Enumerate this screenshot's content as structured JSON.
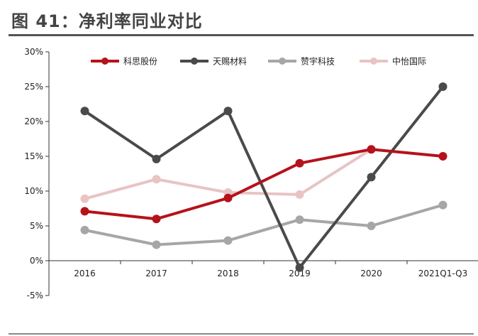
{
  "figure": {
    "title": "图 41：净利率同业对比"
  },
  "chart_data": {
    "type": "line",
    "title": "",
    "xlabel": "",
    "ylabel": "",
    "categories": [
      "2016",
      "2017",
      "2018",
      "2019",
      "2020",
      "2021Q1-Q3"
    ],
    "y_ticks": [
      "30%",
      "25%",
      "20%",
      "15%",
      "10%",
      "5%",
      "0%",
      "-5%"
    ],
    "y_tick_values": [
      30,
      25,
      20,
      15,
      10,
      5,
      0,
      -5
    ],
    "ylim": [
      -5,
      30
    ],
    "grid": false,
    "legend_position": "top",
    "series": [
      {
        "name": "科思股份",
        "color": "#b5121b",
        "values": [
          7.1,
          6.0,
          9.0,
          14.0,
          16.0,
          15.0
        ]
      },
      {
        "name": "天赐材料",
        "color": "#4a4a4a",
        "values": [
          21.5,
          14.6,
          21.5,
          -1.0,
          12.0,
          25.0
        ]
      },
      {
        "name": "赞宇科技",
        "color": "#a6a6a6",
        "values": [
          4.4,
          2.3,
          2.9,
          5.9,
          5.0,
          8.0
        ]
      },
      {
        "name": "中怡国际",
        "color": "#e8c4c4",
        "values": [
          8.9,
          11.7,
          9.8,
          9.5,
          16.0,
          null
        ]
      }
    ]
  }
}
